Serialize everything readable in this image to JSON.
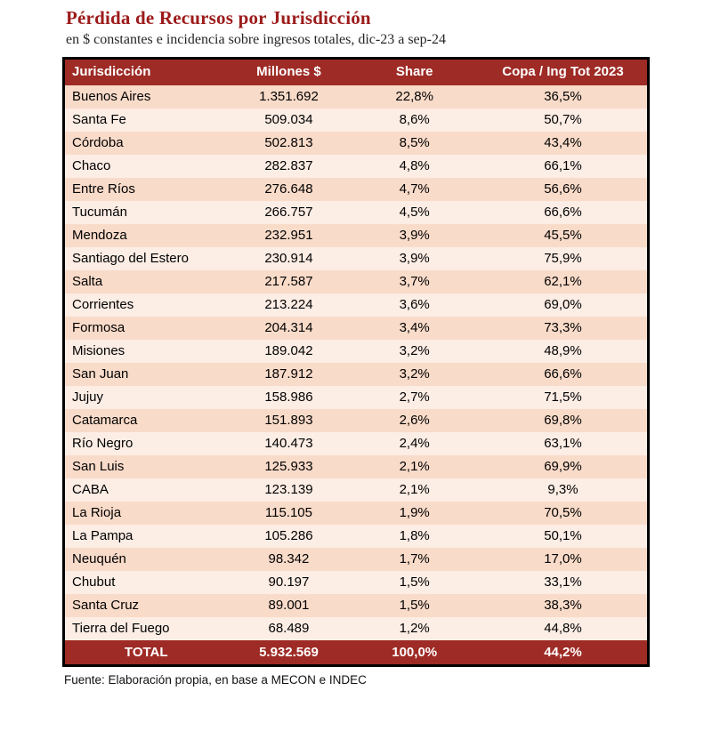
{
  "page": {
    "title": "Pérdida de Recursos por Jurisdicción",
    "subtitle": "en $ constantes e incidencia sobre ingresos totales, dic-23 a sep-24",
    "source": "Fuente: Elaboración propia, en base a MECON e INDEC"
  },
  "colors": {
    "header_bg": "#9E2B25",
    "title_color": "#9C1B1B",
    "row_odd": "#F9DBC9",
    "row_even": "#FCEDE5"
  },
  "chart_data": {
    "type": "table",
    "title": "Pérdida de Recursos por Jurisdicción",
    "subtitle": "en $ constantes e incidencia sobre ingresos totales, dic-23 a sep-24",
    "columns": [
      "Jurisdicción",
      "Millones $",
      "Share",
      "Copa / Ing Tot 2023"
    ],
    "rows": [
      [
        "Buenos Aires",
        "1.351.692",
        "22,8%",
        "36,5%"
      ],
      [
        "Santa Fe",
        "509.034",
        "8,6%",
        "50,7%"
      ],
      [
        "Córdoba",
        "502.813",
        "8,5%",
        "43,4%"
      ],
      [
        "Chaco",
        "282.837",
        "4,8%",
        "66,1%"
      ],
      [
        "Entre Ríos",
        "276.648",
        "4,7%",
        "56,6%"
      ],
      [
        "Tucumán",
        "266.757",
        "4,5%",
        "66,6%"
      ],
      [
        "Mendoza",
        "232.951",
        "3,9%",
        "45,5%"
      ],
      [
        "Santiago del Estero",
        "230.914",
        "3,9%",
        "75,9%"
      ],
      [
        "Salta",
        "217.587",
        "3,7%",
        "62,1%"
      ],
      [
        "Corrientes",
        "213.224",
        "3,6%",
        "69,0%"
      ],
      [
        "Formosa",
        "204.314",
        "3,4%",
        "73,3%"
      ],
      [
        "Misiones",
        "189.042",
        "3,2%",
        "48,9%"
      ],
      [
        "San Juan",
        "187.912",
        "3,2%",
        "66,6%"
      ],
      [
        "Jujuy",
        "158.986",
        "2,7%",
        "71,5%"
      ],
      [
        "Catamarca",
        "151.893",
        "2,6%",
        "69,8%"
      ],
      [
        "Río Negro",
        "140.473",
        "2,4%",
        "63,1%"
      ],
      [
        "San Luis",
        "125.933",
        "2,1%",
        "69,9%"
      ],
      [
        "CABA",
        "123.139",
        "2,1%",
        "9,3%"
      ],
      [
        "La Rioja",
        "115.105",
        "1,9%",
        "70,5%"
      ],
      [
        "La Pampa",
        "105.286",
        "1,8%",
        "50,1%"
      ],
      [
        "Neuquén",
        "98.342",
        "1,7%",
        "17,0%"
      ],
      [
        "Chubut",
        "90.197",
        "1,5%",
        "33,1%"
      ],
      [
        "Santa Cruz",
        "89.001",
        "1,5%",
        "38,3%"
      ],
      [
        "Tierra del Fuego",
        "68.489",
        "1,2%",
        "44,8%"
      ]
    ],
    "total": [
      "TOTAL",
      "5.932.569",
      "100,0%",
      "44,2%"
    ],
    "source": "Fuente: Elaboración propia, en base a MECON e INDEC"
  }
}
